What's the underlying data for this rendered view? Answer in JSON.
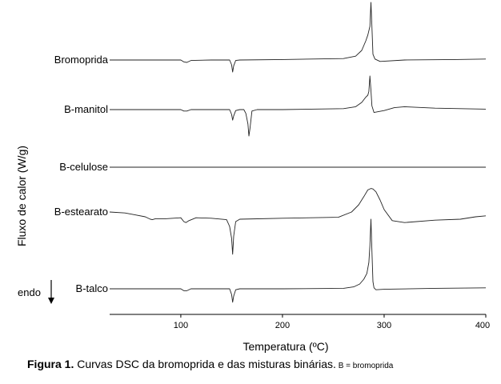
{
  "chart_data": {
    "type": "line",
    "xlabel": "Temperatura (ºC)",
    "ylabel": "Fluxo de calor (W/g)",
    "xlim": [
      30,
      400
    ],
    "xticks": [
      100,
      200,
      300,
      400
    ],
    "grid": false,
    "direction_label": "endo",
    "series": [
      {
        "name": "Bromoprida",
        "x": [
          30,
          100,
          103,
          106,
          110,
          130,
          148,
          150,
          151,
          152,
          154,
          158,
          200,
          260,
          272,
          278,
          282,
          284,
          286,
          287,
          288,
          289,
          291,
          296,
          320,
          370,
          400
        ],
        "y": [
          0,
          0,
          -0.4,
          -0.5,
          -0.1,
          0,
          0,
          -1,
          -2.5,
          -1.2,
          -0.1,
          0,
          0.1,
          0.3,
          0.8,
          2.0,
          4.0,
          5.2,
          7.0,
          12.0,
          7.0,
          1.2,
          0.2,
          -0.3,
          0,
          0.1,
          0.2
        ]
      },
      {
        "name": "B-manitol",
        "x": [
          30,
          100,
          103,
          106,
          110,
          140,
          148,
          150,
          151,
          152,
          154,
          158,
          162,
          164,
          166,
          167,
          168,
          170,
          175,
          200,
          260,
          272,
          278,
          282,
          284,
          285,
          286,
          287,
          288,
          290,
          300,
          310,
          320,
          350,
          400
        ],
        "y": [
          0,
          0,
          -0.3,
          -0.3,
          0,
          0,
          0,
          -1.0,
          -2.2,
          -1.3,
          -0.2,
          0,
          0,
          -0.8,
          -3.0,
          -5.5,
          -4.0,
          -0.3,
          0,
          0,
          0.2,
          0.6,
          1.5,
          2.6,
          3.0,
          3.8,
          7.0,
          4.0,
          0.8,
          -0.6,
          -0.2,
          0.4,
          0.6,
          0.3,
          0.1
        ]
      },
      {
        "name": "B-celulose",
        "x": [
          30,
          100,
          200,
          300,
          400
        ],
        "y": [
          0,
          0,
          0,
          0,
          0
        ]
      },
      {
        "name": "B-estearato",
        "x": [
          30,
          45,
          55,
          65,
          70,
          72,
          75,
          85,
          100,
          103,
          105,
          108,
          115,
          130,
          145,
          148,
          150,
          151,
          152,
          154,
          158,
          200,
          255,
          268,
          275,
          280,
          284,
          287,
          289,
          292,
          296,
          300,
          308,
          320,
          350,
          375,
          390,
          400
        ],
        "y": [
          0,
          -0.2,
          -0.6,
          -1.0,
          -1.5,
          -1.6,
          -1.4,
          -1.4,
          -1.2,
          -2.0,
          -2.2,
          -1.8,
          -1.2,
          -1.3,
          -1.6,
          -3.0,
          -5.5,
          -8.8,
          -5.0,
          -2.0,
          -1.5,
          -1.3,
          -1.1,
          0.0,
          1.5,
          3.2,
          4.6,
          4.9,
          4.8,
          4.2,
          2.5,
          0.5,
          -1.8,
          -2.2,
          -1.7,
          -1.5,
          -1.0,
          -0.8
        ]
      },
      {
        "name": "B-talco",
        "x": [
          30,
          100,
          103,
          106,
          110,
          140,
          148,
          150,
          151,
          152,
          154,
          158,
          200,
          260,
          270,
          276,
          280,
          283,
          285,
          286,
          287,
          288,
          289,
          290,
          292,
          300,
          350,
          400
        ],
        "y": [
          0,
          0,
          -0.4,
          -0.4,
          0,
          0,
          0,
          -1.2,
          -2.8,
          -1.5,
          -0.2,
          0,
          0,
          0.1,
          0.4,
          1.0,
          2.0,
          3.2,
          5.5,
          9.0,
          14.5,
          8.0,
          1.5,
          0.2,
          -0.2,
          -0.1,
          0.1,
          0.2
        ]
      }
    ]
  },
  "caption": {
    "prefix": "Figura 1.",
    "text": " Curvas DSC da bromoprida e das misturas binárias.",
    "note": " B = bromoprida"
  }
}
